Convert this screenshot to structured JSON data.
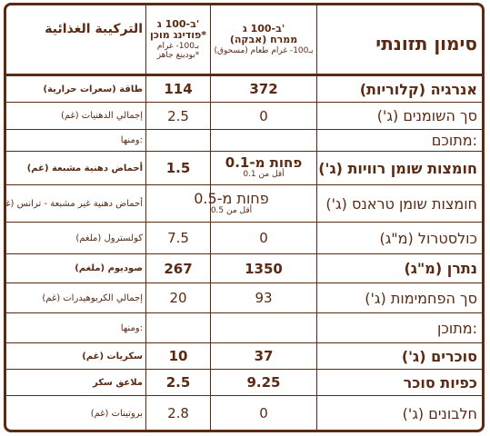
{
  "header": {
    "title_he": "סימון תזונתי",
    "title_ar": "التركيبة الغذائية",
    "col_spread_line1": "ב-100 ג'",
    "col_spread_line2": "ממרח (אבקה)",
    "col_spread_ar": "بـ100- غرام طعام (مسحوق)",
    "col_pudding_line1": "ב-100 ג'",
    "col_pudding_line2": "פודינג מוכן*",
    "col_pudding_ar": "بـ100- غرام بودينغ جاهز*"
  },
  "rows": [
    {
      "he": "אנרגיה (קלוריות)",
      "ar": "طاقة (سعرات حرارية)",
      "spread": "372",
      "pudding": "114",
      "bold": true
    },
    {
      "he": "סך השומנים (ג')",
      "ar": "إجمالي الدهنيات (غم)",
      "spread": "0",
      "pudding": "2.5",
      "bold": false
    },
    {
      "he": "מתוכם:",
      "ar": "ومنها:",
      "spread": "",
      "pudding": "",
      "bold": false
    },
    {
      "he": "חומצות שומן רוויות (ג')",
      "ar": "أحماض دهنية مشبعة (غم)",
      "spread": "פחות מ-0.1",
      "spread_sub": "أقل من 0.1",
      "pudding": "1.5",
      "bold": true
    },
    {
      "he": "חומצות שומן טראנס (ג')",
      "ar": "أحماض دهنية غير مشبعة - ترانس (غم)",
      "merged": "פחות מ-0.5",
      "merged_sub": "أقل من 0.5",
      "bold": false
    },
    {
      "he": "כולסטרול (מ\"ג)",
      "ar": "كولسترول (ملغم)",
      "spread": "0",
      "pudding": "7.5",
      "bold": false
    },
    {
      "he": "נתרן (מ\"ג)",
      "ar": "صوديوم (ملغم)",
      "spread": "1350",
      "pudding": "267",
      "bold": true
    },
    {
      "he": "סך הפחמימות (ג')",
      "ar": "إجمالي الكربوهيدرات (غم)",
      "spread": "93",
      "pudding": "20",
      "bold": false
    },
    {
      "he": "מתוכן:",
      "ar": "ومنها:",
      "spread": "",
      "pudding": "",
      "bold": false
    },
    {
      "he": "סוכרים (ג')",
      "ar": "سكريات (غم)",
      "spread": "37",
      "pudding": "10",
      "bold": true
    },
    {
      "he": "כפיות סוכר",
      "ar": "ملاعق سكر",
      "spread": "9.25",
      "pudding": "2.5",
      "bold": true
    },
    {
      "he": "חלבונים (ג')",
      "ar": "بروتينات (غم)",
      "spread": "0",
      "pudding": "2.8",
      "bold": false
    }
  ]
}
